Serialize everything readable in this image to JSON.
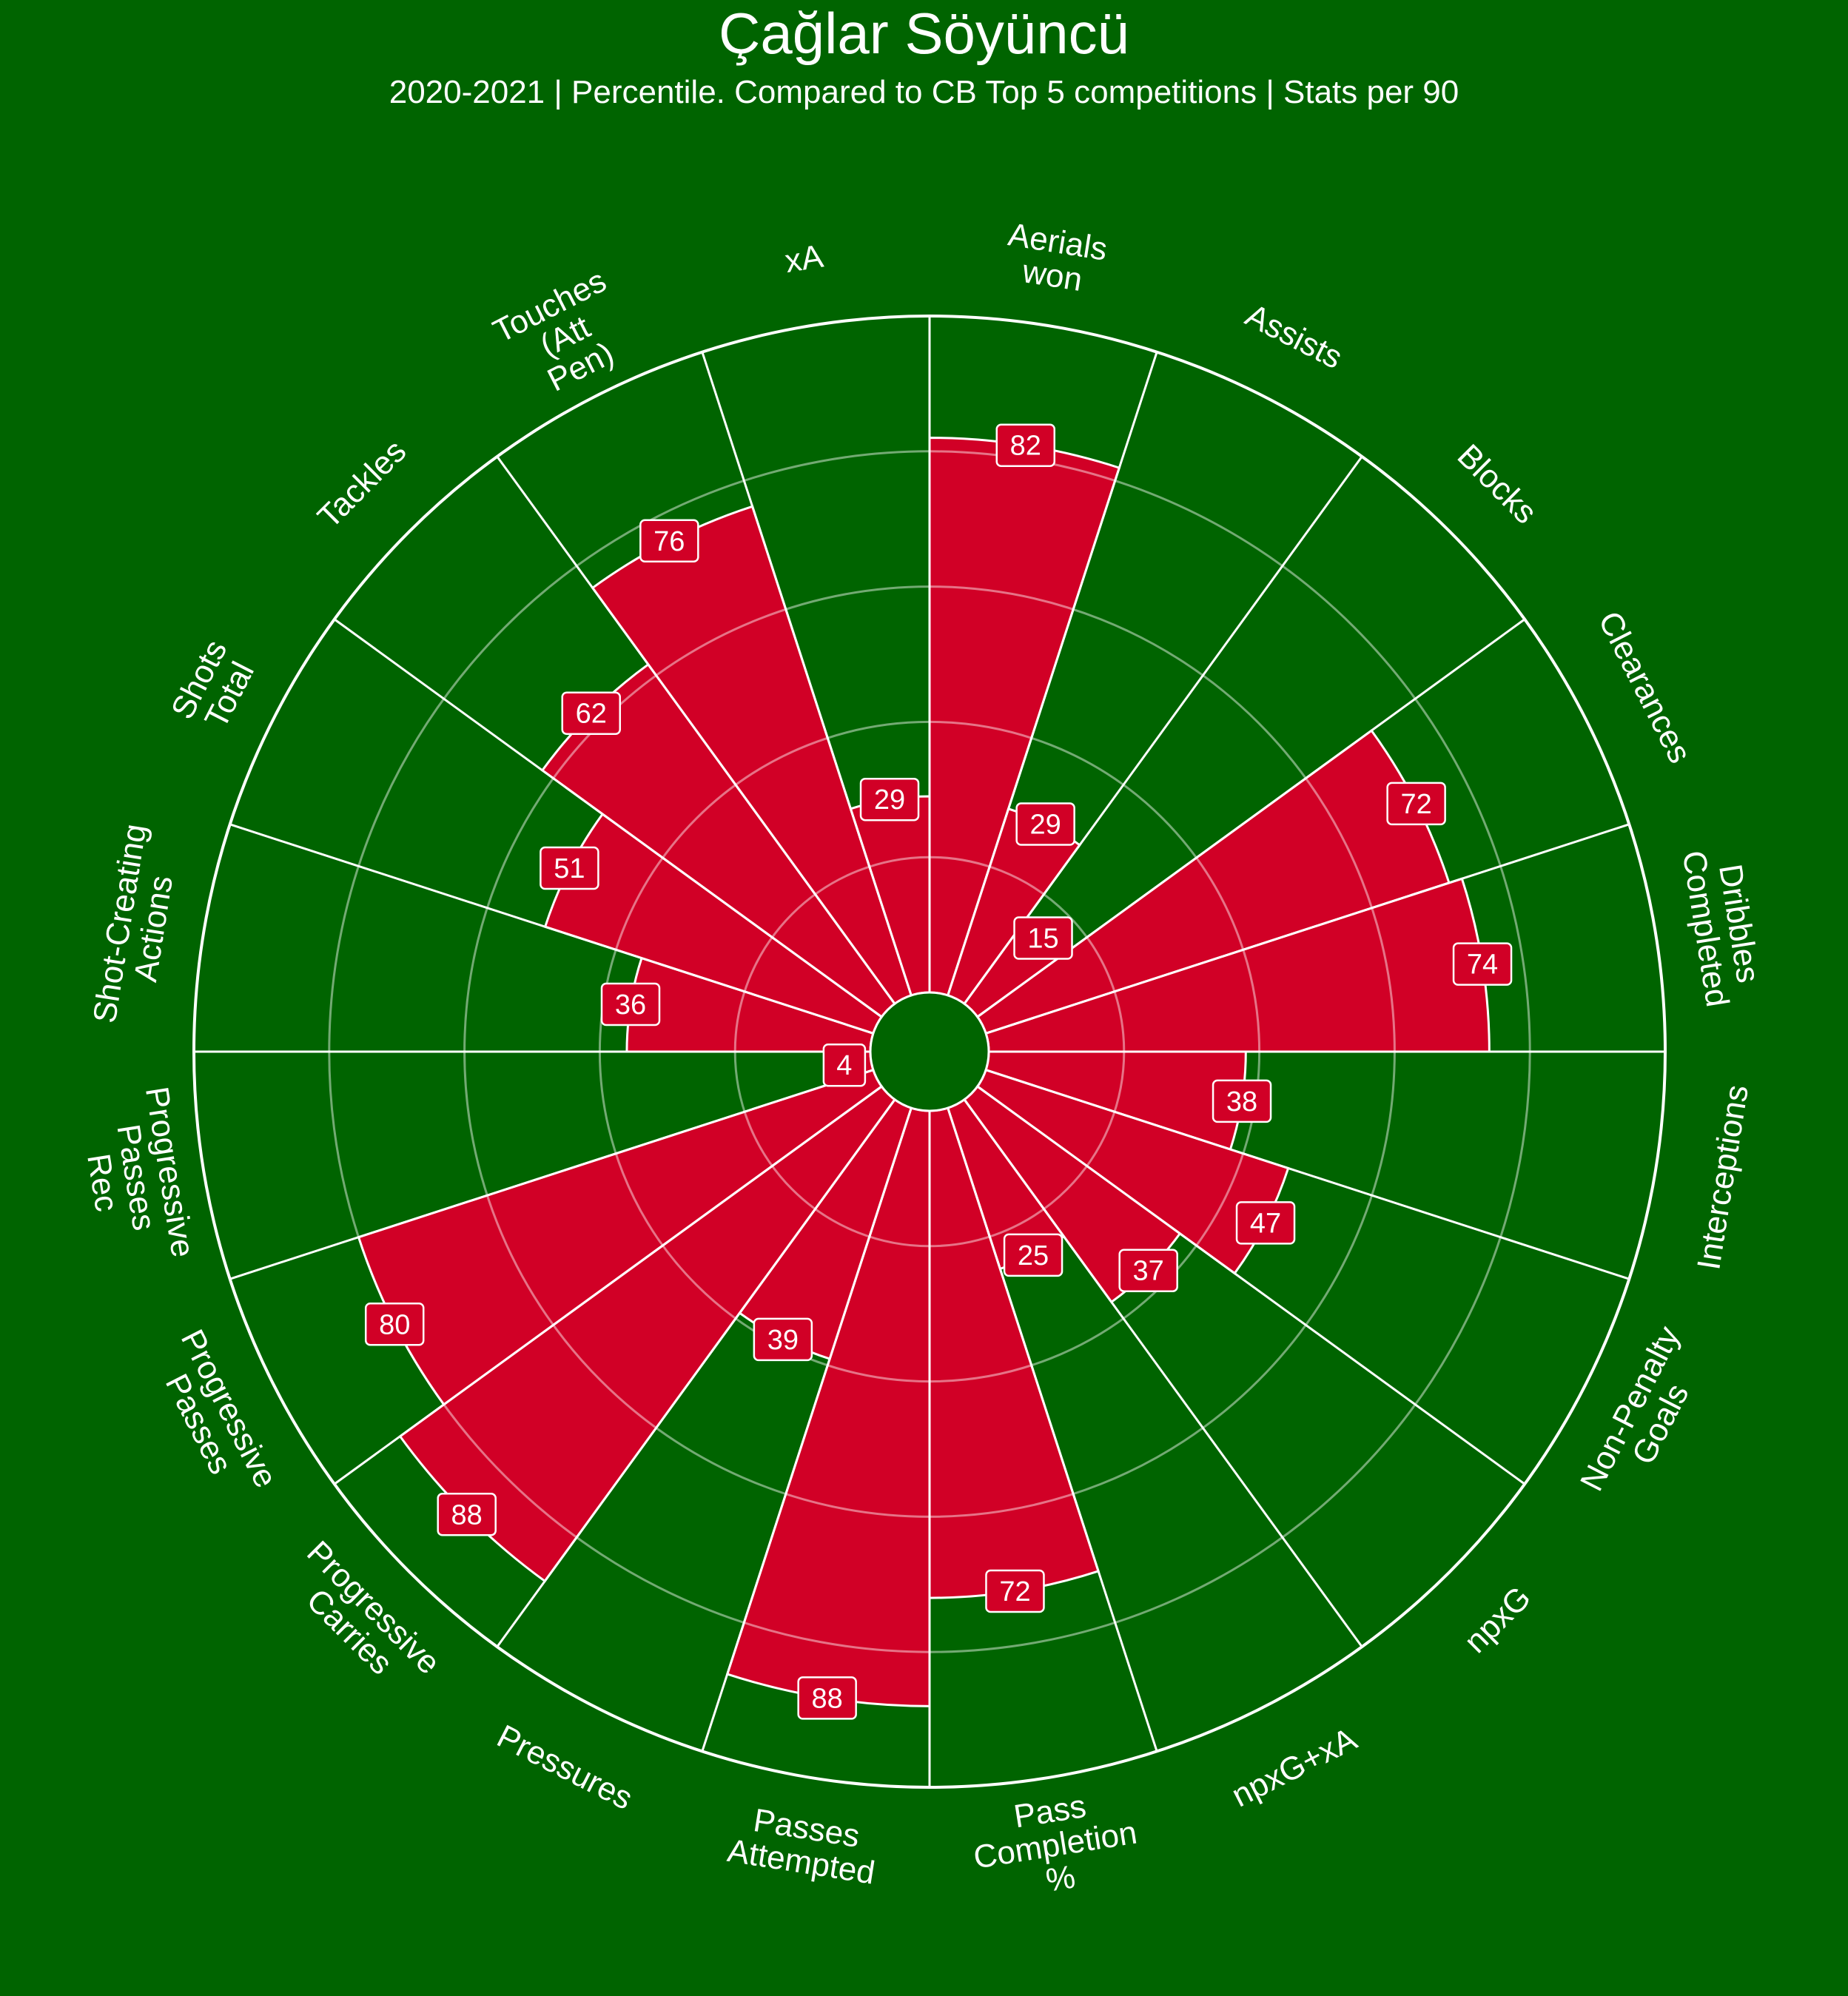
{
  "header": {
    "title": "Çağlar Söyüncü",
    "subtitle": "2020-2021 | Percentile. Compared to CB Top 5 competitions | Stats per 90"
  },
  "colors": {
    "background": "#006400",
    "bar": "#d10026",
    "line": "#ffffff"
  },
  "chart_data": {
    "type": "polar-bar",
    "scale": [
      0,
      100
    ],
    "grid": true,
    "start_angle": "12 o'clock",
    "direction": "clockwise",
    "categories": [
      {
        "label": [
          "Aerials",
          "won"
        ],
        "value": 82
      },
      {
        "label": [
          "Assists"
        ],
        "value": 29
      },
      {
        "label": [
          "Blocks"
        ],
        "value": 15
      },
      {
        "label": [
          "Clearances"
        ],
        "value": 72
      },
      {
        "label": [
          "Dribbles",
          "Completed"
        ],
        "value": 74
      },
      {
        "label": [
          "Interceptions"
        ],
        "value": 38
      },
      {
        "label": [
          "Non-Penalty",
          "Goals"
        ],
        "value": 47
      },
      {
        "label": [
          "npxG"
        ],
        "value": 37
      },
      {
        "label": [
          "npxG+xA"
        ],
        "value": 25
      },
      {
        "label": [
          "Pass",
          "Completion",
          "%"
        ],
        "value": 72
      },
      {
        "label": [
          "Passes",
          "Attempted"
        ],
        "value": 88
      },
      {
        "label": [
          "Pressures"
        ],
        "value": 39
      },
      {
        "label": [
          "Progressive",
          "Carries"
        ],
        "value": 88
      },
      {
        "label": [
          "Progressive",
          "Passes"
        ],
        "value": 80
      },
      {
        "label": [
          "Progressive",
          "Passes",
          "Rec"
        ],
        "value": 4
      },
      {
        "label": [
          "Shot-Creating",
          "Actions"
        ],
        "value": 36
      },
      {
        "label": [
          "Shots",
          "Total"
        ],
        "value": 51
      },
      {
        "label": [
          "Tackles"
        ],
        "value": 62
      },
      {
        "label": [
          "Touches",
          "(Att",
          "Pen)"
        ],
        "value": 76
      },
      {
        "label": [
          "xA"
        ],
        "value": 29
      }
    ]
  }
}
